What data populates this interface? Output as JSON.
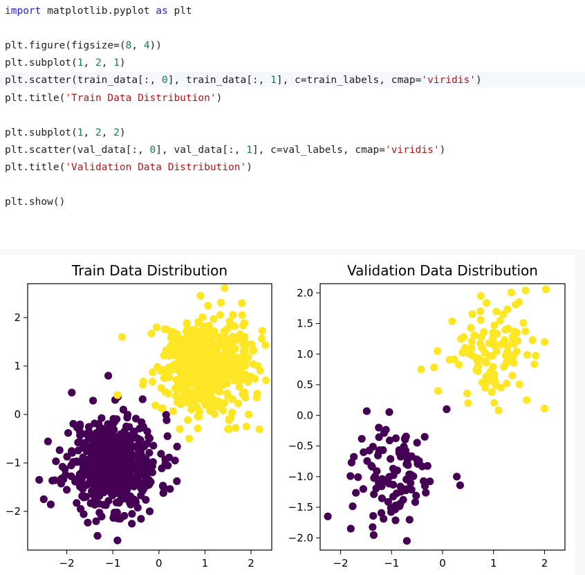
{
  "code_cell": {
    "lines": [
      [
        {
          "t": "import",
          "c": "kw"
        },
        {
          "t": " matplotlib.pyplot "
        },
        {
          "t": "as",
          "c": "kw"
        },
        {
          "t": " plt"
        }
      ],
      [],
      [
        {
          "t": "plt.figure(figsize=("
        },
        {
          "t": "8",
          "c": "num"
        },
        {
          "t": ", "
        },
        {
          "t": "4",
          "c": "num"
        },
        {
          "t": "))"
        }
      ],
      [
        {
          "t": "plt.subplot("
        },
        {
          "t": "1",
          "c": "num"
        },
        {
          "t": ", "
        },
        {
          "t": "2",
          "c": "num"
        },
        {
          "t": ", "
        },
        {
          "t": "1",
          "c": "num"
        },
        {
          "t": ")"
        }
      ],
      [
        {
          "t": "plt.scatter(train_data[:, "
        },
        {
          "t": "0",
          "c": "num"
        },
        {
          "t": "], train_data[:, "
        },
        {
          "t": "1",
          "c": "num"
        },
        {
          "t": "], c=train_labels, cmap="
        },
        {
          "t": "'viridis'",
          "c": "str"
        },
        {
          "t": ")"
        }
      ],
      [
        {
          "t": "plt.title("
        },
        {
          "t": "'Train Data Distribution'",
          "c": "str"
        },
        {
          "t": ")"
        }
      ],
      [],
      [
        {
          "t": "plt.subplot("
        },
        {
          "t": "1",
          "c": "num"
        },
        {
          "t": ", "
        },
        {
          "t": "2",
          "c": "num"
        },
        {
          "t": ", "
        },
        {
          "t": "2",
          "c": "num"
        },
        {
          "t": ")"
        }
      ],
      [
        {
          "t": "plt.scatter(val_data[:, "
        },
        {
          "t": "0",
          "c": "num"
        },
        {
          "t": "], val_data[:, "
        },
        {
          "t": "1",
          "c": "num"
        },
        {
          "t": "], c=val_labels, cmap="
        },
        {
          "t": "'viridis'",
          "c": "str"
        },
        {
          "t": ")"
        }
      ],
      [
        {
          "t": "plt.title("
        },
        {
          "t": "'Validation Data Distribution'",
          "c": "str"
        },
        {
          "t": ")"
        }
      ],
      [],
      [
        {
          "t": "plt.show()"
        }
      ]
    ]
  },
  "colors": {
    "class0": "#440154",
    "class1": "#fde725",
    "keyword": "#2020e0",
    "number": "#128040",
    "string": "#b01818"
  },
  "chart_data": [
    {
      "type": "scatter",
      "title": "Train Data Distribution",
      "xlabel": "",
      "ylabel": "",
      "xlim": [
        -2.85,
        2.45
      ],
      "ylim": [
        -2.8,
        2.7
      ],
      "xticks": [
        "−2",
        "−1",
        "0",
        "1",
        "2"
      ],
      "yticks": [
        "−2",
        "−1",
        "0",
        "1",
        "2"
      ],
      "xtick_values": [
        -2,
        -1,
        0,
        1,
        2
      ],
      "ytick_values": [
        -2,
        -1,
        0,
        1,
        2
      ],
      "grid": false,
      "series": [
        {
          "label_value": 0,
          "color": "#440154",
          "n": 500,
          "center": [
            -1.0,
            -1.0
          ],
          "spread": 0.5,
          "seed": 11,
          "points": [
            [
              -1.1,
              0.8
            ],
            [
              -2.6,
              -1.35
            ],
            [
              -2.5,
              -1.75
            ],
            [
              -0.9,
              -2.6
            ],
            [
              -0.2,
              -2.0
            ],
            [
              -1.7,
              -1.95
            ],
            [
              0.35,
              -0.95
            ],
            [
              -0.75,
              -0.35
            ],
            [
              -0.95,
              0.3
            ]
          ]
        },
        {
          "label_value": 1,
          "color": "#fde725",
          "n": 500,
          "center": [
            1.0,
            1.0
          ],
          "spread": 0.5,
          "seed": 29,
          "points": [
            [
              0.9,
              2.45
            ],
            [
              1.8,
              2.3
            ],
            [
              -0.8,
              1.6
            ],
            [
              -0.9,
              0.4
            ],
            [
              1.5,
              -0.3
            ],
            [
              1.95,
              0.0
            ],
            [
              2.15,
              1.0
            ],
            [
              0.45,
              -0.3
            ],
            [
              -0.05,
              1.8
            ]
          ]
        }
      ]
    },
    {
      "type": "scatter",
      "title": "Validation Data Distribution",
      "xlabel": "",
      "ylabel": "",
      "xlim": [
        -2.4,
        2.4
      ],
      "ylim": [
        -2.2,
        2.15
      ],
      "xticks": [
        "−2",
        "−1",
        "0",
        "1",
        "2"
      ],
      "yticks": [
        "−2.0",
        "−1.5",
        "−1.0",
        "−0.5",
        "0.0",
        "0.5",
        "1.0",
        "1.5",
        "2.0"
      ],
      "xtick_values": [
        -2,
        -1,
        0,
        1,
        2
      ],
      "ytick_values": [
        -2.0,
        -1.5,
        -1.0,
        -0.5,
        0.0,
        0.5,
        1.0,
        1.5,
        2.0
      ],
      "grid": false,
      "series": [
        {
          "label_value": 0,
          "color": "#440154",
          "n": 100,
          "center": [
            -1.0,
            -1.0
          ],
          "spread": 0.42,
          "seed": 47,
          "points": [
            [
              -2.25,
              -1.65
            ],
            [
              -0.7,
              -2.05
            ],
            [
              0.08,
              0.1
            ],
            [
              0.28,
              -1.0
            ],
            [
              -0.35,
              -0.35
            ],
            [
              -1.25,
              -0.2
            ],
            [
              -1.8,
              -1.85
            ]
          ]
        },
        {
          "label_value": 1,
          "color": "#fde725",
          "n": 100,
          "center": [
            1.0,
            1.0
          ],
          "spread": 0.42,
          "seed": 83,
          "points": [
            [
              0.75,
              1.95
            ],
            [
              2.0,
              1.2
            ],
            [
              -0.1,
              1.05
            ],
            [
              -0.42,
              0.75
            ],
            [
              1.65,
              0.25
            ],
            [
              0.5,
              0.2
            ],
            [
              1.1,
              0.08
            ],
            [
              1.5,
              1.85
            ]
          ]
        }
      ]
    }
  ]
}
